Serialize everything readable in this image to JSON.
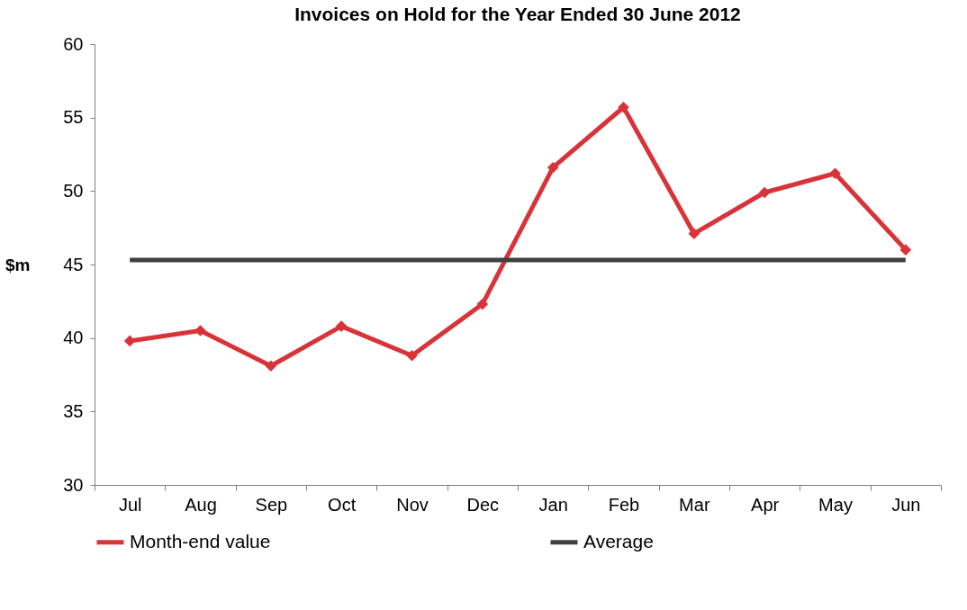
{
  "chart_data": {
    "type": "line",
    "title": "Invoices on Hold for the Year Ended 30 June 2012",
    "ylabel": "$m",
    "categories": [
      "Jul",
      "Aug",
      "Sep",
      "Oct",
      "Nov",
      "Dec",
      "Jan",
      "Feb",
      "Mar",
      "Apr",
      "May",
      "Jun"
    ],
    "series": [
      {
        "name": "Month-end value",
        "color": "#d9333a",
        "values": [
          39.8,
          40.5,
          38.1,
          40.8,
          38.8,
          42.3,
          51.6,
          55.7,
          47.1,
          49.9,
          51.2,
          46.0
        ]
      },
      {
        "name": "Average",
        "color": "#404040",
        "marker": "none",
        "values": [
          45.3,
          45.3,
          45.3,
          45.3,
          45.3,
          45.3,
          45.3,
          45.3,
          45.3,
          45.3,
          45.3,
          45.3
        ]
      }
    ],
    "ylim": [
      30,
      60
    ],
    "yticks": [
      30,
      35,
      40,
      45,
      50,
      55,
      60
    ],
    "grid": false,
    "legend": "bottom",
    "marker": "diamond",
    "line_style": "solid"
  }
}
